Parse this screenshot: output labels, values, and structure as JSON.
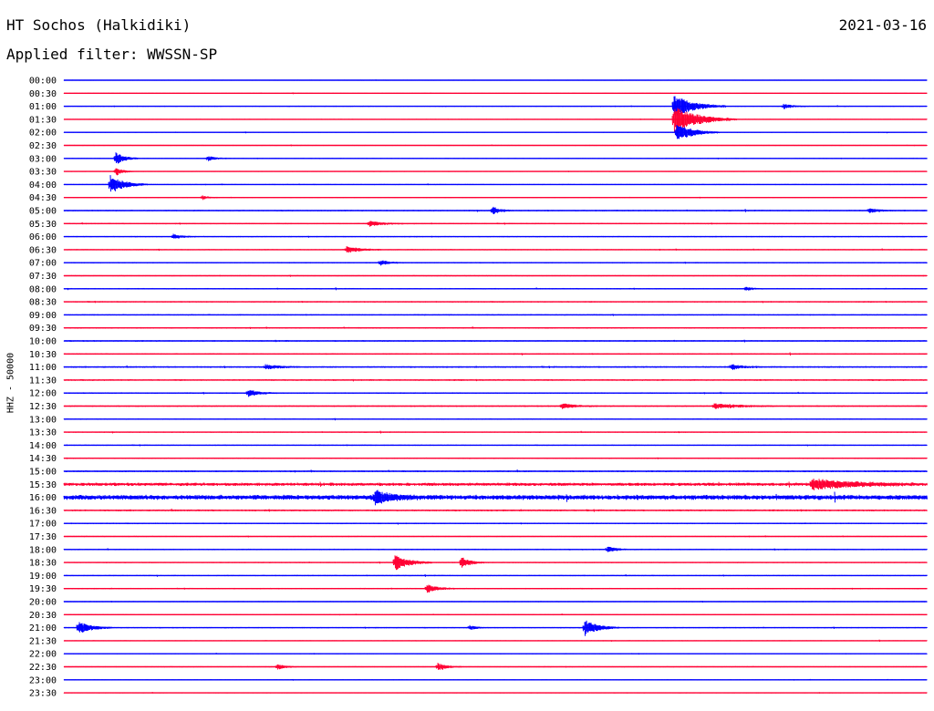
{
  "header": {
    "station": "HT Sochos (Halkidiki)",
    "date": "2021-03-16",
    "filter": "Applied filter: WWSSN-SP"
  },
  "channel_label": "HHZ - 50000",
  "colors": {
    "blue": "#0000ff",
    "red": "#ff0033",
    "text": "#000000"
  },
  "chart_data": {
    "type": "line",
    "title": "HT Sochos (Halkidiki)",
    "subtitle": "Applied filter: WWSSN-SP",
    "date": "2021-03-16",
    "ylabel": "HHZ - 50000",
    "xlabel": "",
    "grid": false,
    "legend": "none",
    "row_interval_minutes": 30,
    "minutes_per_row": 30,
    "color_cycle": [
      "#0000ff",
      "#ff0033"
    ],
    "rows": [
      "00:00",
      "00:30",
      "01:00",
      "01:30",
      "02:00",
      "02:30",
      "03:00",
      "03:30",
      "04:00",
      "04:30",
      "05:00",
      "05:30",
      "06:00",
      "06:30",
      "07:00",
      "07:30",
      "08:00",
      "08:30",
      "09:00",
      "09:30",
      "10:00",
      "10:30",
      "11:00",
      "11:30",
      "12:00",
      "12:30",
      "13:00",
      "13:30",
      "14:00",
      "14:30",
      "15:00",
      "15:30",
      "16:00",
      "16:30",
      "17:00",
      "17:30",
      "18:00",
      "18:30",
      "19:00",
      "19:30",
      "20:00",
      "20:30",
      "21:00",
      "21:30",
      "22:00",
      "22:30",
      "23:00",
      "23:30"
    ],
    "base_noise": [
      0.18,
      0.22,
      0.26,
      0.22,
      0.24,
      0.2,
      0.28,
      0.22,
      0.26,
      0.22,
      0.35,
      0.34,
      0.3,
      0.32,
      0.32,
      0.28,
      0.32,
      0.34,
      0.34,
      0.36,
      0.36,
      0.36,
      0.4,
      0.4,
      0.36,
      0.36,
      0.32,
      0.3,
      0.3,
      0.3,
      0.42,
      0.8,
      1.2,
      0.45,
      0.35,
      0.28,
      0.34,
      0.3,
      0.3,
      0.3,
      0.28,
      0.26,
      0.3,
      0.24,
      0.24,
      0.26,
      0.24,
      0.22
    ],
    "events": [
      {
        "row": 2,
        "minute": 21.2,
        "amplitude": 6.5,
        "duration_min": 1.8
      },
      {
        "row": 3,
        "minute": 21.2,
        "amplitude": 8,
        "duration_min": 2.2
      },
      {
        "row": 4,
        "minute": 21.3,
        "amplitude": 5,
        "duration_min": 1.5
      },
      {
        "row": 2,
        "minute": 25.0,
        "amplitude": 1.5,
        "duration_min": 0.8
      },
      {
        "row": 6,
        "minute": 1.8,
        "amplitude": 3.5,
        "duration_min": 0.8
      },
      {
        "row": 6,
        "minute": 5.0,
        "amplitude": 1.4,
        "duration_min": 0.7
      },
      {
        "row": 8,
        "minute": 1.6,
        "amplitude": 5.5,
        "duration_min": 1.3
      },
      {
        "row": 7,
        "minute": 1.8,
        "amplitude": 2.5,
        "duration_min": 0.6
      },
      {
        "row": 9,
        "minute": 4.8,
        "amplitude": 1.3,
        "duration_min": 0.6
      },
      {
        "row": 10,
        "minute": 14.9,
        "amplitude": 2.2,
        "duration_min": 0.7
      },
      {
        "row": 10,
        "minute": 28.0,
        "amplitude": 1.5,
        "duration_min": 0.8
      },
      {
        "row": 11,
        "minute": 10.6,
        "amplitude": 1.6,
        "duration_min": 1.2
      },
      {
        "row": 12,
        "minute": 3.8,
        "amplitude": 1.4,
        "duration_min": 0.8
      },
      {
        "row": 13,
        "minute": 9.8,
        "amplitude": 2.0,
        "duration_min": 1.2
      },
      {
        "row": 14,
        "minute": 11.0,
        "amplitude": 1.4,
        "duration_min": 0.8
      },
      {
        "row": 16,
        "minute": 23.7,
        "amplitude": 1.2,
        "duration_min": 0.6
      },
      {
        "row": 22,
        "minute": 7.0,
        "amplitude": 1.4,
        "duration_min": 1.2
      },
      {
        "row": 22,
        "minute": 23.2,
        "amplitude": 1.5,
        "duration_min": 1.0
      },
      {
        "row": 24,
        "minute": 6.4,
        "amplitude": 1.8,
        "duration_min": 1.0
      },
      {
        "row": 25,
        "minute": 17.3,
        "amplitude": 1.5,
        "duration_min": 1.2
      },
      {
        "row": 25,
        "minute": 22.6,
        "amplitude": 1.4,
        "duration_min": 2.2
      },
      {
        "row": 32,
        "minute": 10.8,
        "amplitude": 3.5,
        "duration_min": 1.5
      },
      {
        "row": 31,
        "minute": 26.0,
        "amplitude": 3.0,
        "duration_min": 3.5
      },
      {
        "row": 37,
        "minute": 11.5,
        "amplitude": 4.5,
        "duration_min": 1.3
      },
      {
        "row": 37,
        "minute": 13.8,
        "amplitude": 3.5,
        "duration_min": 0.8
      },
      {
        "row": 36,
        "minute": 18.9,
        "amplitude": 1.6,
        "duration_min": 0.8
      },
      {
        "row": 39,
        "minute": 12.6,
        "amplitude": 2.5,
        "duration_min": 1.0
      },
      {
        "row": 42,
        "minute": 0.5,
        "amplitude": 3.5,
        "duration_min": 1.2
      },
      {
        "row": 42,
        "minute": 18.1,
        "amplitude": 4.5,
        "duration_min": 1.2
      },
      {
        "row": 42,
        "minute": 14.1,
        "amplitude": 1.3,
        "duration_min": 0.6
      },
      {
        "row": 45,
        "minute": 7.4,
        "amplitude": 1.6,
        "duration_min": 0.8
      },
      {
        "row": 45,
        "minute": 13.0,
        "amplitude": 2.2,
        "duration_min": 0.8
      }
    ]
  }
}
